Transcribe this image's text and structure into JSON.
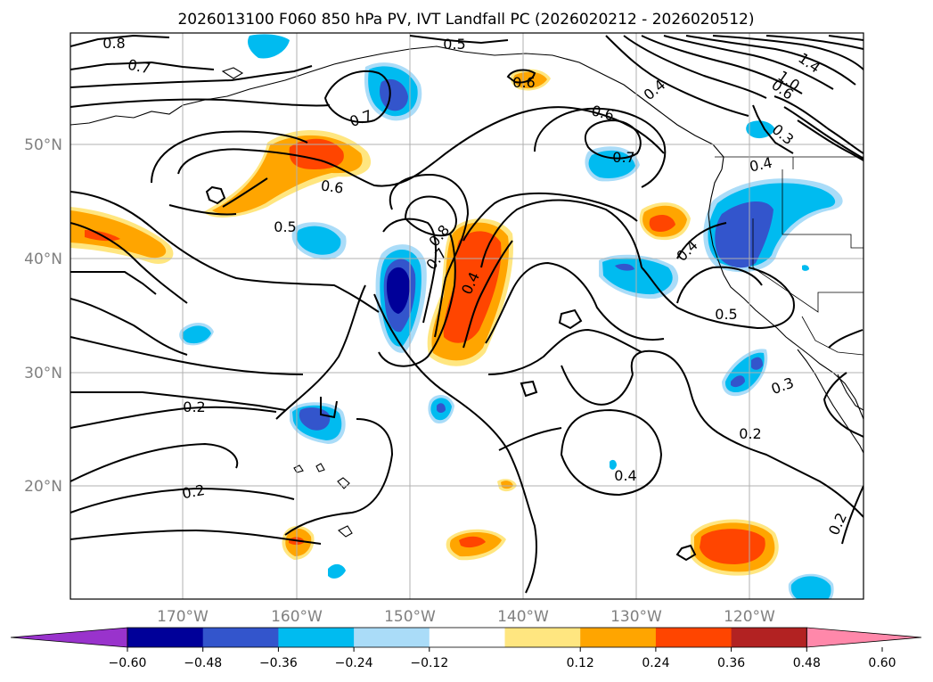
{
  "title": "2026013100 F060 850 hPa PV, IVT Landfall PC (2026020212 - 2026020512)",
  "lat_labels": [
    "50°N",
    "40°N",
    "30°N",
    "20°N"
  ],
  "lon_labels": [
    "170°W",
    "160°W",
    "150°W",
    "140°W",
    "130°W",
    "120°W"
  ],
  "contour_labels": {
    "c08a": "0.8",
    "c07a": "0.7",
    "c05a": "0.5",
    "c06a": "0.6",
    "c07b": "0.7",
    "c14": "1.4",
    "c10": "1.0",
    "c06b": "0.6",
    "c04a": "0.4",
    "c06c": "0.6",
    "c07c": "0.7",
    "c04b": "0.4",
    "c03a": "0.3",
    "c06d": "0.6",
    "c05b": "0.5",
    "c08b": "0.8",
    "c07d": "0.7",
    "c04c": "0.4",
    "c04d": "0.4",
    "c05c": "0.5",
    "c03b": "0.3",
    "c02a": "0.2",
    "c02b": "0.2",
    "c02c": "0.2",
    "c04e": "0.4",
    "c02d": "0.2"
  },
  "colorbar": {
    "ticks": [
      "−0.60",
      "−0.48",
      "−0.36",
      "−0.24",
      "−0.12",
      "0.12",
      "0.24",
      "0.36",
      "0.48",
      "0.60"
    ],
    "colors": [
      "#9933cc",
      "#000099",
      "#3355cc",
      "#00bbf0",
      "#aadcf8",
      "#ffffff",
      "#ffe680",
      "#ffa500",
      "#ff4500",
      "#b22222",
      "#ff88aa"
    ]
  },
  "colors": {
    "neg_strong": "#000099",
    "neg_mid": "#3355cc",
    "neg": "#00bbf0",
    "neg_light": "#aadcf8",
    "pos_light": "#ffe680",
    "pos": "#ffa500",
    "pos_mid": "#ff4500",
    "pos_strong": "#b22222"
  }
}
